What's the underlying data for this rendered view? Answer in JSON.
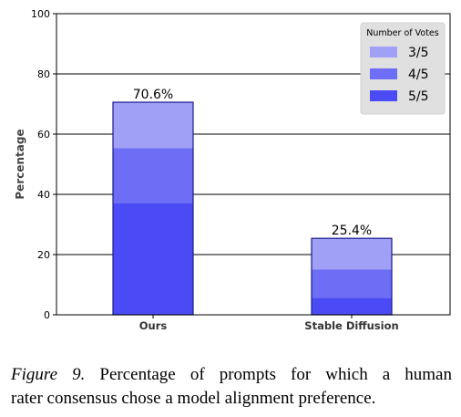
{
  "chart_data": {
    "type": "bar",
    "stacked": true,
    "categories": [
      "Ours",
      "Stable Diffusion"
    ],
    "ylabel": "Percentage",
    "ylim": [
      0,
      100
    ],
    "yticks": [
      0,
      20,
      40,
      60,
      80,
      100
    ],
    "grid": true,
    "series": [
      {
        "name": "5/5",
        "values": [
          37.2,
          5.7
        ],
        "color": "#4b4bf5"
      },
      {
        "name": "4/5",
        "values": [
          18.1,
          9.3
        ],
        "color": "#6d6df5"
      },
      {
        "name": "3/5",
        "values": [
          15.3,
          10.4
        ],
        "color": "#a0a0f7"
      }
    ],
    "totals": [
      70.6,
      25.4
    ],
    "total_labels": [
      "70.6%",
      "25.4%"
    ],
    "legend": {
      "title": "Number of Votes",
      "placement": "top-right",
      "entries": [
        "3/5",
        "4/5",
        "5/5"
      ]
    }
  },
  "caption": {
    "figure_label": "Figure 9.",
    "line1": "Percentage of prompts for which a human",
    "line2": "rater consensus chose a model alignment preference."
  }
}
